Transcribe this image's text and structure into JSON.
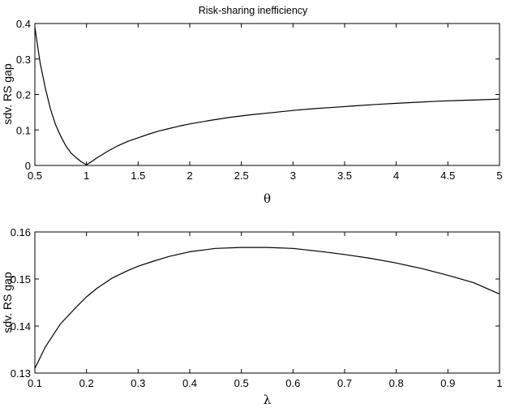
{
  "chart_data": [
    {
      "type": "line",
      "title": "Risk-sharing inefficiency",
      "xlabel": "θ",
      "ylabel": "sdv. RS gap",
      "xlim": [
        0.5,
        5
      ],
      "ylim": [
        0,
        0.4
      ],
      "xticks": [
        0.5,
        1,
        1.5,
        2,
        2.5,
        3,
        3.5,
        4,
        4.5,
        5
      ],
      "yticks": [
        0,
        0.1,
        0.2,
        0.3,
        0.4
      ],
      "xtick_labels": [
        "0.5",
        "1",
        "1.5",
        "2",
        "2.5",
        "3",
        "3.5",
        "4",
        "4.5",
        "5"
      ],
      "ytick_labels": [
        "0",
        "0.1",
        "0.2",
        "0.3",
        "0.4"
      ],
      "grid": false,
      "series": [
        {
          "x": [
            0.5,
            0.55,
            0.6,
            0.65,
            0.7,
            0.75,
            0.8,
            0.85,
            0.9,
            0.95,
            1.0,
            1.05,
            1.1,
            1.2,
            1.3,
            1.4,
            1.5,
            1.6,
            1.7,
            1.8,
            1.9,
            2.0,
            2.2,
            2.4,
            2.6,
            2.8,
            3.0,
            3.2,
            3.4,
            3.6,
            3.8,
            4.0,
            4.2,
            4.4,
            4.6,
            4.8,
            5.0
          ],
          "y": [
            0.39,
            0.29,
            0.22,
            0.16,
            0.115,
            0.083,
            0.055,
            0.035,
            0.022,
            0.01,
            0.002,
            0.011,
            0.021,
            0.039,
            0.055,
            0.068,
            0.078,
            0.088,
            0.097,
            0.104,
            0.111,
            0.117,
            0.127,
            0.136,
            0.143,
            0.149,
            0.155,
            0.16,
            0.164,
            0.168,
            0.172,
            0.175,
            0.178,
            0.181,
            0.183,
            0.185,
            0.187
          ]
        }
      ]
    },
    {
      "type": "line",
      "xlabel": "λ",
      "ylabel": "sdv. RS gap",
      "xlim": [
        0.1,
        1
      ],
      "ylim": [
        0.13,
        0.16
      ],
      "xticks": [
        0.1,
        0.2,
        0.3,
        0.4,
        0.5,
        0.6,
        0.7,
        0.8,
        0.9,
        1
      ],
      "yticks": [
        0.13,
        0.14,
        0.15,
        0.16
      ],
      "xtick_labels": [
        "0.1",
        "0.2",
        "0.3",
        "0.4",
        "0.5",
        "0.6",
        "0.7",
        "0.8",
        "0.9",
        "1"
      ],
      "ytick_labels": [
        "0.13",
        "0.14",
        "0.15",
        "0.16"
      ],
      "grid": false,
      "series": [
        {
          "x": [
            0.1,
            0.12,
            0.15,
            0.18,
            0.2,
            0.22,
            0.25,
            0.28,
            0.3,
            0.33,
            0.36,
            0.4,
            0.45,
            0.5,
            0.55,
            0.6,
            0.65,
            0.7,
            0.75,
            0.8,
            0.85,
            0.9,
            0.95,
            1.0
          ],
          "y": [
            0.131,
            0.1355,
            0.1405,
            0.144,
            0.1462,
            0.148,
            0.1502,
            0.1518,
            0.1527,
            0.1538,
            0.1548,
            0.1558,
            0.1565,
            0.1567,
            0.1567,
            0.1565,
            0.1559,
            0.1552,
            0.1544,
            0.1534,
            0.1522,
            0.1508,
            0.1492,
            0.1468
          ]
        }
      ]
    }
  ]
}
